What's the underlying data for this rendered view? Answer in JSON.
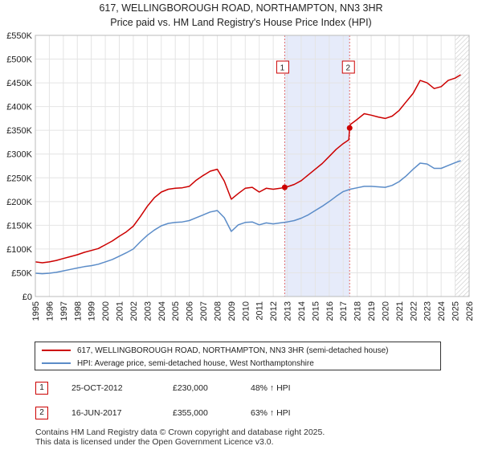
{
  "chart_data": {
    "type": "line",
    "title": "617, WELLINGBOROUGH ROAD, NORTHAMPTON, NN3 3HR",
    "subtitle": "Price paid vs. HM Land Registry's House Price Index (HPI)",
    "xlabel": "",
    "ylabel": "",
    "xlim": [
      1995,
      2026
    ],
    "ylim": [
      0,
      550000
    ],
    "x_ticks": [
      "1995",
      "1996",
      "1997",
      "1998",
      "1999",
      "2000",
      "2001",
      "2002",
      "2003",
      "2004",
      "2005",
      "2006",
      "2007",
      "2008",
      "2009",
      "2010",
      "2011",
      "2012",
      "2013",
      "2014",
      "2015",
      "2016",
      "2017",
      "2018",
      "2019",
      "2020",
      "2021",
      "2022",
      "2023",
      "2024",
      "2025",
      "2026"
    ],
    "y_ticks": [
      {
        "value": 0,
        "label": "£0"
      },
      {
        "value": 50000,
        "label": "£50K"
      },
      {
        "value": 100000,
        "label": "£100K"
      },
      {
        "value": 150000,
        "label": "£150K"
      },
      {
        "value": 200000,
        "label": "£200K"
      },
      {
        "value": 250000,
        "label": "£250K"
      },
      {
        "value": 300000,
        "label": "£300K"
      },
      {
        "value": 350000,
        "label": "£350K"
      },
      {
        "value": 400000,
        "label": "£400K"
      },
      {
        "value": 450000,
        "label": "£450K"
      },
      {
        "value": 500000,
        "label": "£500K"
      },
      {
        "value": 550000,
        "label": "£550K"
      }
    ],
    "grid": true,
    "shaded_period": [
      2012.82,
      2017.46
    ],
    "forecast_start": 2025.0,
    "series": [
      {
        "name": "617, WELLINGBOROUGH ROAD, NORTHAMPTON, NN3 3HR (semi-detached house)",
        "color": "#cc0000",
        "x": [
          1995,
          1995.5,
          1996,
          1996.5,
          1997,
          1997.5,
          1998,
          1998.5,
          1999,
          1999.5,
          2000,
          2000.5,
          2001,
          2001.5,
          2002,
          2002.5,
          2003,
          2003.5,
          2004,
          2004.5,
          2005,
          2005.5,
          2006,
          2006.5,
          2007,
          2007.5,
          2008,
          2008.5,
          2009,
          2009.5,
          2010,
          2010.5,
          2011,
          2011.5,
          2012,
          2012.5,
          2012.82,
          2013,
          2013.5,
          2014,
          2014.5,
          2015,
          2015.5,
          2016,
          2016.5,
          2017,
          2017.4,
          2017.46,
          2017.5,
          2018,
          2018.5,
          2019,
          2019.5,
          2020,
          2020.5,
          2021,
          2021.5,
          2022,
          2022.5,
          2023,
          2023.5,
          2024,
          2024.5,
          2025,
          2025.4
        ],
        "values": [
          73000,
          71000,
          73000,
          76000,
          80000,
          84000,
          88000,
          93000,
          97000,
          101000,
          109000,
          117000,
          127000,
          136000,
          148000,
          168000,
          190000,
          208000,
          220000,
          226000,
          228000,
          229000,
          232000,
          245000,
          255000,
          264000,
          268000,
          243000,
          205000,
          217000,
          228000,
          230000,
          220000,
          228000,
          226000,
          228000,
          230000,
          231000,
          236000,
          244000,
          256000,
          268000,
          280000,
          295000,
          310000,
          322000,
          330000,
          355000,
          362000,
          373000,
          385000,
          382000,
          378000,
          375000,
          380000,
          392000,
          410000,
          428000,
          455000,
          450000,
          438000,
          442000,
          455000,
          460000,
          467000
        ]
      },
      {
        "name": "HPI: Average price, semi-detached house, West Northamptonshire",
        "color": "#5b8cc8",
        "x": [
          1995,
          1995.5,
          1996,
          1996.5,
          1997,
          1997.5,
          1998,
          1998.5,
          1999,
          1999.5,
          2000,
          2000.5,
          2001,
          2001.5,
          2002,
          2002.5,
          2003,
          2003.5,
          2004,
          2004.5,
          2005,
          2005.5,
          2006,
          2006.5,
          2007,
          2007.5,
          2008,
          2008.5,
          2009,
          2009.5,
          2010,
          2010.5,
          2011,
          2011.5,
          2012,
          2012.5,
          2013,
          2013.5,
          2014,
          2014.5,
          2015,
          2015.5,
          2016,
          2016.5,
          2017,
          2017.5,
          2018,
          2018.5,
          2019,
          2019.5,
          2020,
          2020.5,
          2021,
          2021.5,
          2022,
          2022.5,
          2023,
          2023.5,
          2024,
          2024.5,
          2025,
          2025.4
        ],
        "values": [
          49000,
          48000,
          49000,
          51000,
          54000,
          57000,
          60000,
          63000,
          65000,
          68000,
          73000,
          78000,
          85000,
          92000,
          100000,
          115000,
          129000,
          140000,
          149000,
          154000,
          156000,
          157000,
          160000,
          166000,
          172000,
          178000,
          181000,
          166000,
          137000,
          151000,
          156000,
          157000,
          151000,
          155000,
          153000,
          155000,
          157000,
          160000,
          165000,
          172000,
          181000,
          190000,
          200000,
          211000,
          221000,
          226000,
          229000,
          232000,
          232000,
          231000,
          230000,
          234000,
          242000,
          254000,
          268000,
          281000,
          279000,
          270000,
          270000,
          276000,
          282000,
          286000
        ]
      }
    ],
    "annotations": [
      {
        "label": "1",
        "x": 2012.82,
        "value": 230000
      },
      {
        "label": "2",
        "x": 2017.46,
        "value": 355000
      }
    ]
  },
  "legend": {
    "items": [
      {
        "label": "617, WELLINGBOROUGH ROAD, NORTHAMPTON, NN3 3HR (semi-detached house)",
        "color": "#cc0000"
      },
      {
        "label": "HPI: Average price, semi-detached house, West Northamptonshire",
        "color": "#5b8cc8"
      }
    ]
  },
  "transactions": [
    {
      "num": "1",
      "date": "25-OCT-2012",
      "price": "£230,000",
      "hpi": "48% ↑ HPI"
    },
    {
      "num": "2",
      "date": "16-JUN-2017",
      "price": "£355,000",
      "hpi": "63% ↑ HPI"
    }
  ],
  "footer": {
    "line1": "Contains HM Land Registry data © Crown copyright and database right 2025.",
    "line2": "This data is licensed under the Open Government Licence v3.0."
  }
}
